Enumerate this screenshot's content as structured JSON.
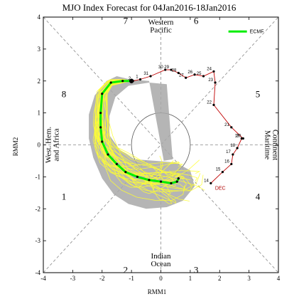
{
  "chart_data": {
    "type": "scatter",
    "title": "MJO Index Forecast for 04Jan2016-18Jan2016",
    "xlabel": "RMM1",
    "ylabel": "RMM2",
    "xlim": [
      -4,
      4
    ],
    "ylim": [
      -4,
      4
    ],
    "x_ticks": [
      "-4",
      "-3",
      "-2",
      "-1",
      "0",
      "1",
      "2",
      "3",
      "4"
    ],
    "y_ticks": [
      "-4",
      "-3",
      "-2",
      "-1",
      "0",
      "1",
      "2",
      "3",
      "4"
    ],
    "grid": false,
    "legend_position": "top-right",
    "phase_labels": [
      "1",
      "2",
      "3",
      "4",
      "5",
      "6",
      "7",
      "8"
    ],
    "regions": {
      "top": [
        "Western",
        "Pacific"
      ],
      "bottom": [
        "Indian",
        "Ocean"
      ],
      "left": [
        "West. Hem.",
        "and Africa"
      ],
      "right": [
        "Maritime",
        "Continent"
      ]
    },
    "colors": {
      "observed": "#c00000",
      "ensemble_mean": "#00ee00",
      "members": "#ffff30",
      "spread": "#a8a8a8"
    },
    "series": [
      {
        "name": "ECMF",
        "label": "ECMF",
        "color": "#00ee00",
        "x": [
          -1.0,
          -1.3,
          -1.7,
          -2.0,
          -2.05,
          -2.05,
          -2.0,
          -1.8,
          -1.5,
          -1.2,
          -0.8,
          -0.4,
          0.0,
          0.35,
          0.55,
          0.6
        ],
        "y": [
          2.0,
          2.0,
          1.95,
          1.6,
          1.0,
          0.55,
          0.1,
          -0.3,
          -0.6,
          -0.85,
          -1.0,
          -1.1,
          -1.15,
          -1.2,
          -1.15,
          -1.05
        ]
      }
    ],
    "observed": {
      "days": [
        "14",
        "15",
        "16",
        "17",
        "18",
        "19",
        "20",
        "21",
        "22",
        "23",
        "24",
        "25",
        "26",
        "27",
        "28",
        "29",
        "30",
        "31",
        "1",
        "2"
      ],
      "month_label": "DEC",
      "x": [
        1.7,
        2.1,
        2.4,
        2.45,
        2.6,
        2.75,
        2.8,
        2.4,
        1.8,
        1.85,
        1.8,
        1.45,
        1.15,
        0.85,
        0.6,
        0.35,
        0.15,
        -0.35,
        -0.7,
        -0.95
      ],
      "y": [
        -1.2,
        -0.85,
        -0.6,
        -0.3,
        -0.1,
        0.2,
        0.2,
        0.55,
        1.25,
        1.95,
        2.3,
        2.15,
        2.2,
        2.1,
        2.25,
        2.35,
        2.35,
        2.15,
        2.05,
        2.0
      ]
    },
    "spread_area": {
      "x": [
        -1.05,
        -1.5,
        -1.85,
        -2.25,
        -2.45,
        -2.45,
        -2.3,
        -2.0,
        -1.6,
        -1.1,
        -0.5,
        0.2,
        0.75,
        1.15,
        1.0,
        0.5,
        -0.2,
        -0.9,
        -1.4,
        -1.75,
        -1.75,
        -1.55,
        -1.1,
        -0.4,
        0.2,
        0.4,
        0.1,
        -0.4
      ],
      "y": [
        2.05,
        2.15,
        2.0,
        1.55,
        0.95,
        0.2,
        -0.4,
        -1.05,
        -1.55,
        -1.85,
        -2.0,
        -1.95,
        -1.75,
        -1.3,
        -0.8,
        -0.55,
        -0.5,
        -0.45,
        -0.15,
        0.3,
        0.9,
        1.5,
        1.85,
        1.95,
        1.9,
        -0.45,
        -0.5,
        2.0
      ]
    }
  }
}
